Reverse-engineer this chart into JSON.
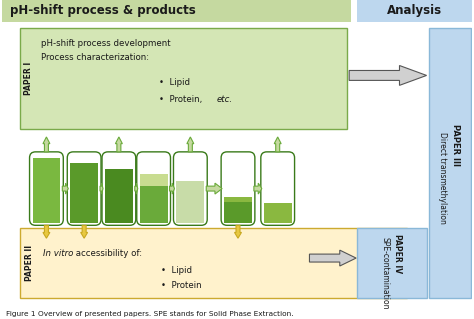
{
  "fig_width": 4.74,
  "fig_height": 3.19,
  "dpi": 100,
  "bg_color": "#ffffff",
  "header_left_color": "#c5d9a0",
  "header_right_color": "#bdd7ee",
  "paper1_box_color": "#d4e6b5",
  "paper2_box_color": "#fff2cc",
  "paper3_box_color": "#bdd7ee",
  "paper4_box_color": "#bdd7ee",
  "tube_green_dark": "#4a8c2a",
  "tube_green_mid": "#6aaa3a",
  "tube_green_light": "#a8cc80",
  "tube_green_pale": "#c8dca8",
  "tube_outline": "#3a7a1a",
  "arrow_green_fill": "#c5d9a0",
  "arrow_green_outline": "#6aaa3a",
  "arrow_yellow_fill": "#e8c840",
  "arrow_yellow_outline": "#c8a820",
  "arrow_black": "#333333",
  "title_left": "pH-shift process & products",
  "title_right": "Analysis",
  "paper1_label": "PAPER I",
  "paper1_line1": "pH-shift process development",
  "paper1_line2": "Process characterization:",
  "paper1_b1": "Lipid",
  "paper1_b2_pre": "Protein, ",
  "paper1_b2_it": "etc.",
  "paper2_label": "PAPER II",
  "paper2_it": "In vitro",
  "paper2_rest": " accessibility of:",
  "paper2_b1": "Lipid",
  "paper2_b2": "Protein",
  "paper3_label": "PAPER III",
  "paper3_text": "Direct transmethylation",
  "paper4_label": "PAPER IV",
  "paper4_text": "SPE-contamination",
  "caption": "Figure 1 Overview of presented papers. SPE stands for Solid Phase Extraction."
}
